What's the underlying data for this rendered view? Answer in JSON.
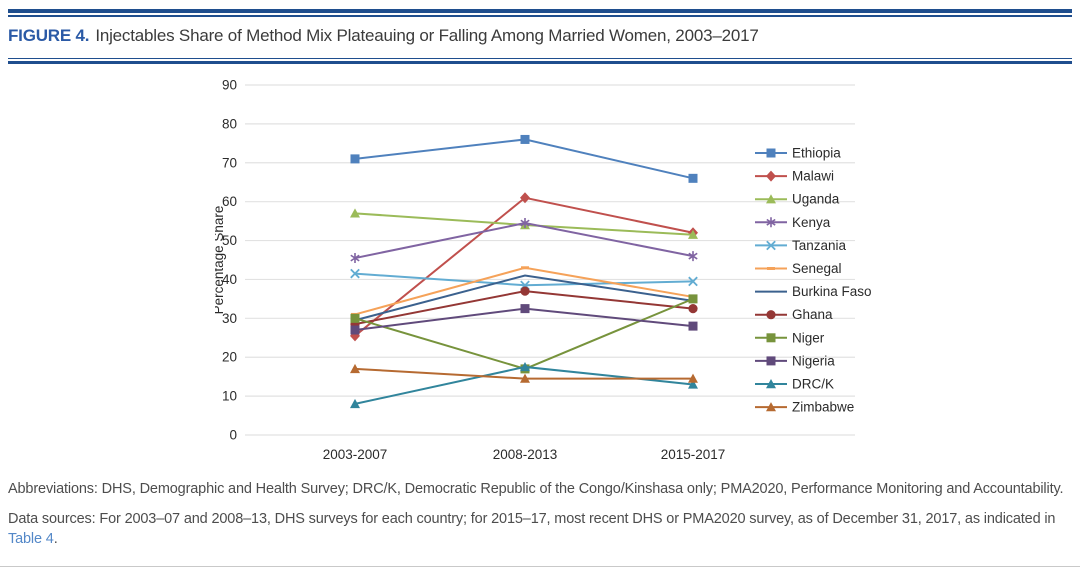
{
  "header": {
    "figure_label": "FIGURE 4.",
    "title": "Injectables Share of Method Mix Plateauing or Falling Among Married Women, 2003–2017"
  },
  "chart_data": {
    "type": "line",
    "categories": [
      "2003-2007",
      "2008-2013",
      "2015-2017"
    ],
    "xlabel": "",
    "ylabel": "Percentage Share",
    "ylim": [
      0,
      90
    ],
    "ytick_step": 10,
    "grid": true,
    "legend_position": "right",
    "series": [
      {
        "name": "Ethiopia",
        "values": [
          71,
          76,
          66
        ],
        "color": "#4F81BD",
        "marker": "square"
      },
      {
        "name": "Malawi",
        "values": [
          25.5,
          61,
          52
        ],
        "color": "#C0504D",
        "marker": "diamond"
      },
      {
        "name": "Uganda",
        "values": [
          57,
          54,
          51.5
        ],
        "color": "#9BBB59",
        "marker": "triangle"
      },
      {
        "name": "Kenya",
        "values": [
          45.5,
          54.5,
          46
        ],
        "color": "#8064A2",
        "marker": "asterisk"
      },
      {
        "name": "Tanzania",
        "values": [
          41.5,
          38.5,
          39.5
        ],
        "color": "#62ACD2",
        "marker": "x"
      },
      {
        "name": "Senegal",
        "values": [
          31,
          43,
          35.5
        ],
        "color": "#F5A259",
        "marker": "dash"
      },
      {
        "name": "Burkina Faso",
        "values": [
          29.5,
          41,
          34.5
        ],
        "color": "#3B618E",
        "marker": "none"
      },
      {
        "name": "Ghana",
        "values": [
          28.5,
          37,
          32.5
        ],
        "color": "#943735",
        "marker": "circle"
      },
      {
        "name": "Niger",
        "values": [
          30,
          17,
          35
        ],
        "color": "#77933C",
        "marker": "square"
      },
      {
        "name": "Nigeria",
        "values": [
          27,
          32.5,
          28
        ],
        "color": "#604A7B",
        "marker": "square"
      },
      {
        "name": "DRC/K",
        "values": [
          8,
          17.5,
          13
        ],
        "color": "#31859C",
        "marker": "triangle"
      },
      {
        "name": "Zimbabwe",
        "values": [
          17,
          14.5,
          14.5
        ],
        "color": "#B66A31",
        "marker": "triangle"
      }
    ]
  },
  "footer": {
    "abbreviations": "Abbreviations: DHS, Demographic and Health Survey; DRC/K, Democratic Republic of the Congo/Kinshasa only; PMA2020, Performance Monitoring and Accountability.",
    "data_sources_prefix": "Data sources: For 2003–07 and 2008–13, DHS surveys for each country; for 2015–17, most recent DHS or PMA2020 survey, as of December 31, 2017, as indicated in ",
    "table_link": "Table 4",
    "data_sources_suffix": "."
  },
  "colors": {
    "accent_rule_blue": "#1F4E8E",
    "figure_label_blue": "#2B5AA6",
    "link_blue": "#5488C8",
    "gridline_gray": "#E2E2E2",
    "axis_text": "#2b2b2b"
  }
}
